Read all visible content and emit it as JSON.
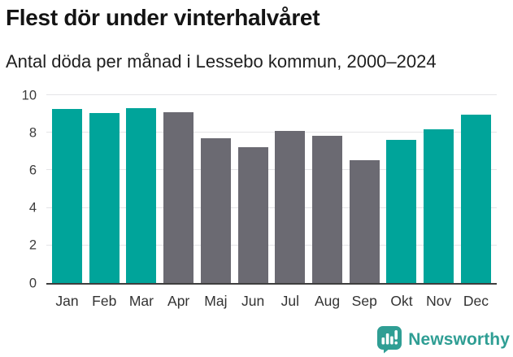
{
  "header": {
    "title": "Flest dör under vinterhalvåret",
    "subtitle": "Antal döda per månad i Lessebo kommun, 2000–2024"
  },
  "chart_data": {
    "type": "bar",
    "title": "Flest dör under vinterhalvåret",
    "subtitle": "Antal döda per månad i Lessebo kommun, 2000–2024",
    "categories": [
      "Jan",
      "Feb",
      "Mar",
      "Apr",
      "Maj",
      "Jun",
      "Jul",
      "Aug",
      "Sep",
      "Okt",
      "Nov",
      "Dec"
    ],
    "values": [
      9.25,
      9.05,
      9.3,
      9.1,
      7.7,
      7.25,
      8.1,
      7.85,
      6.55,
      7.6,
      8.2,
      8.95
    ],
    "highlighted": [
      true,
      true,
      true,
      false,
      false,
      false,
      false,
      false,
      false,
      true,
      true,
      true
    ],
    "colors": {
      "highlight": "#00a49a",
      "base": "#6b6a72",
      "axis_line": "#3e3e3e",
      "gridline": "#e4e4e7",
      "tick_text": "#3c3c3c"
    },
    "xlabel": "",
    "ylabel": "",
    "ylim": [
      0,
      10
    ],
    "yticks": [
      0,
      2,
      4,
      6,
      8,
      10
    ],
    "grid": true,
    "legend": "none"
  },
  "footer": {
    "brand": "Newsworthy",
    "brand_color": "#2f9e94",
    "logo_icon": "bar-chart-speech-bubble"
  }
}
